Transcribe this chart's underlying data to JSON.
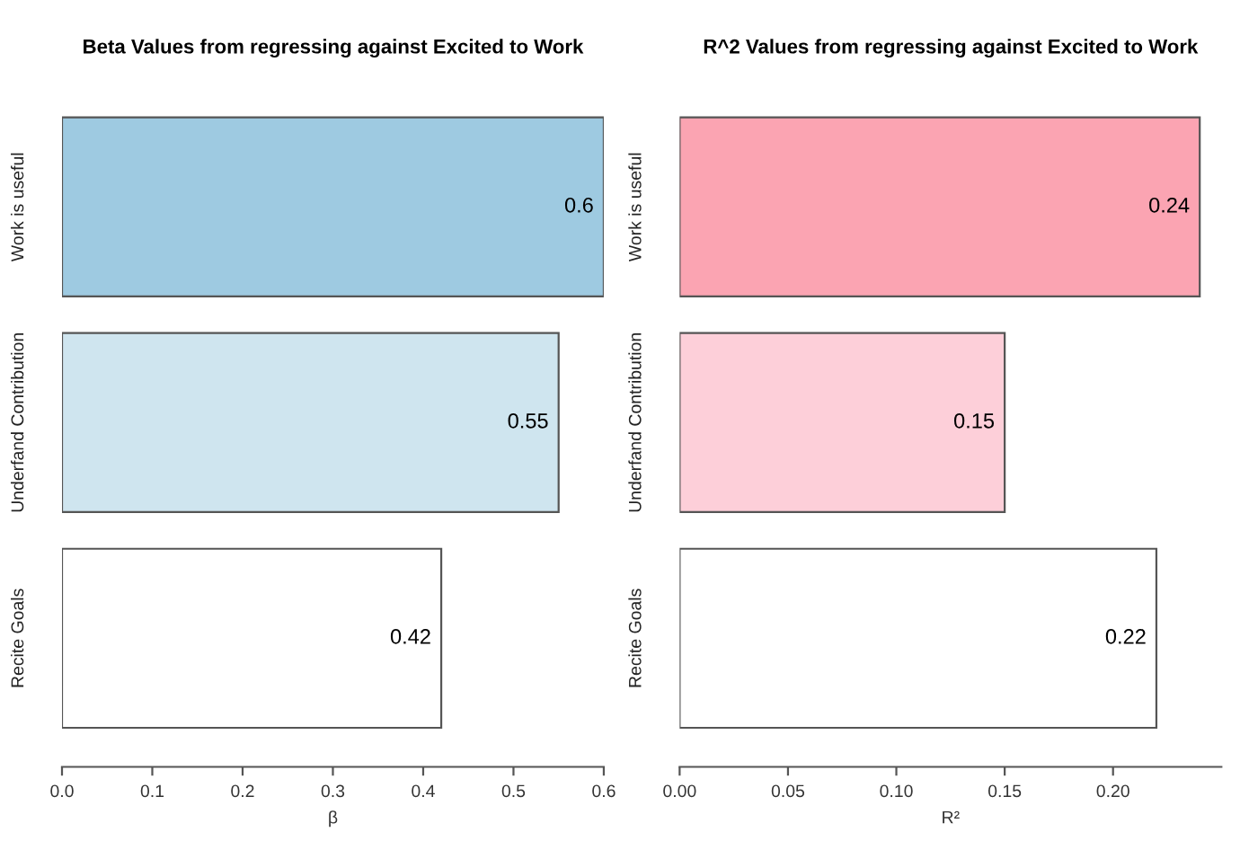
{
  "chart_data": [
    {
      "type": "bar",
      "orientation": "horizontal",
      "title": "Beta Values from regressing against Excited to Work",
      "xlabel": "β",
      "categories": [
        "Work is useful",
        "Underfand Contribution",
        "Recite Goals"
      ],
      "values": [
        0.6,
        0.55,
        0.42
      ],
      "colors": [
        "#9ecae1",
        "#cfe5ef",
        "#ffffff"
      ],
      "data_labels": true,
      "xlim": [
        0,
        0.6
      ],
      "xticks": [
        {
          "value": 0,
          "label": "0.0"
        },
        0.1,
        0.2,
        0.3,
        0.4,
        0.5,
        0.6
      ],
      "grid": false,
      "legend": false
    },
    {
      "type": "bar",
      "orientation": "horizontal",
      "title": "R^2 Values from regressing against Excited to Work",
      "xlabel": "R²",
      "categories": [
        "Work is useful",
        "Underfand Contribution",
        "Recite Goals"
      ],
      "values": [
        0.24,
        0.15,
        0.22
      ],
      "colors": [
        "#fba4b2",
        "#fdcfd9",
        "#ffffff"
      ],
      "data_labels": true,
      "xlim": [
        0,
        0.25
      ],
      "xticks": [
        {
          "value": 0,
          "label": "0.00"
        },
        0.05,
        {
          "value": 0.1,
          "label": "0.10"
        },
        0.15,
        {
          "value": 0.2,
          "label": "0.20"
        }
      ],
      "grid": false,
      "legend": false
    }
  ]
}
